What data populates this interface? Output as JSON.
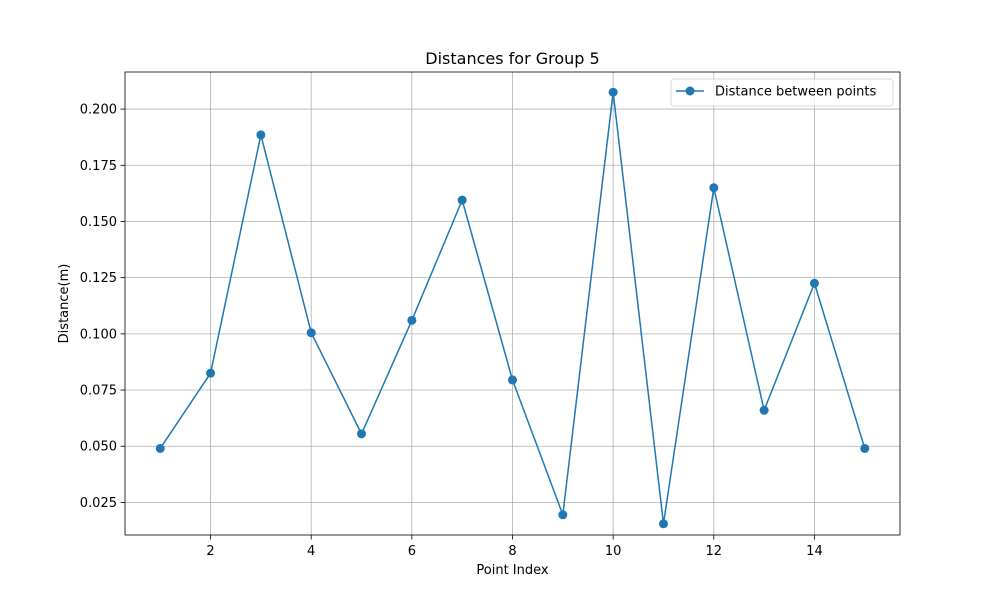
{
  "chart_data": {
    "type": "line",
    "title": "Distances for Group 5",
    "xlabel": "Point Index",
    "ylabel": "Distance(m)",
    "xlim": [
      0.3,
      15.7
    ],
    "ylim": [
      0.0105,
      0.2165
    ],
    "x_ticks": [
      2,
      4,
      6,
      8,
      10,
      12,
      14
    ],
    "y_ticks": [
      0.025,
      0.05,
      0.075,
      0.1,
      0.125,
      0.15,
      0.175,
      0.2
    ],
    "y_tick_labels": [
      "0.025",
      "0.050",
      "0.075",
      "0.100",
      "0.125",
      "0.150",
      "0.175",
      "0.200"
    ],
    "grid": true,
    "legend_position": "top-right",
    "series": [
      {
        "name": "Distance between points",
        "color": "#1f77b4",
        "marker": "circle",
        "x": [
          1,
          2,
          3,
          4,
          5,
          6,
          7,
          8,
          9,
          10,
          11,
          12,
          13,
          14,
          15
        ],
        "y": [
          0.049,
          0.0825,
          0.1885,
          0.1005,
          0.0555,
          0.106,
          0.1595,
          0.0795,
          0.0195,
          0.2075,
          0.0155,
          0.165,
          0.066,
          0.1225,
          0.049
        ]
      }
    ]
  }
}
